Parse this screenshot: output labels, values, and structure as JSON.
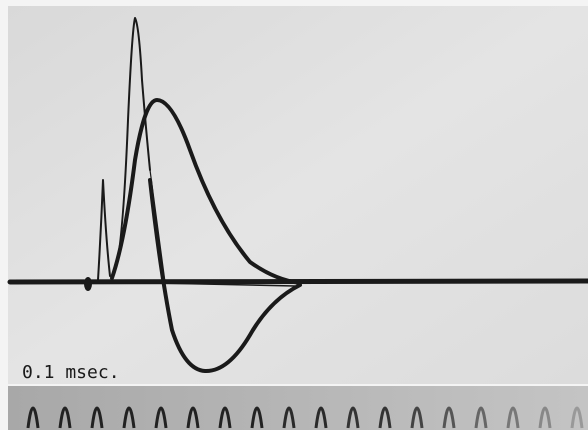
{
  "scale_label": "0.1 msec."
}
